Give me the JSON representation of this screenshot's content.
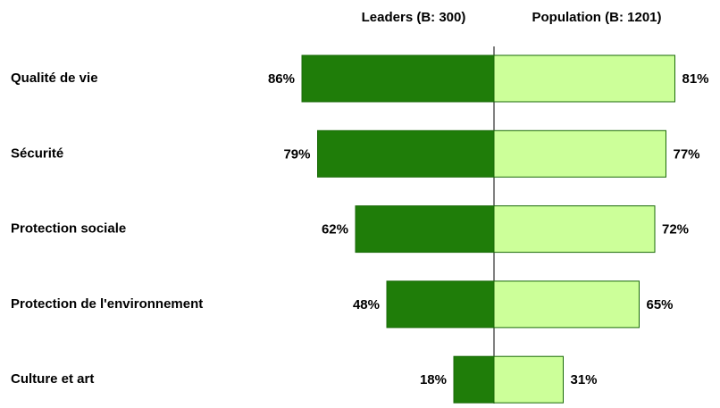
{
  "chart_data": {
    "type": "butterfly",
    "categories": [
      "Qualité de vie",
      "Sécurité",
      "Protection sociale",
      "Protection de l'environnement",
      "Culture et art"
    ],
    "series": [
      {
        "name": "Leaders (B: 300)",
        "color": "#1f7d09",
        "values": [
          86,
          79,
          62,
          48,
          18
        ],
        "value_labels": [
          "86%",
          "79%",
          "62%",
          "48%",
          "18%"
        ]
      },
      {
        "name": "Population (B: 1201)",
        "color": "#ccff99",
        "values": [
          81,
          77,
          72,
          65,
          31
        ],
        "value_labels": [
          "81%",
          "77%",
          "72%",
          "65%",
          "31%"
        ]
      }
    ]
  }
}
